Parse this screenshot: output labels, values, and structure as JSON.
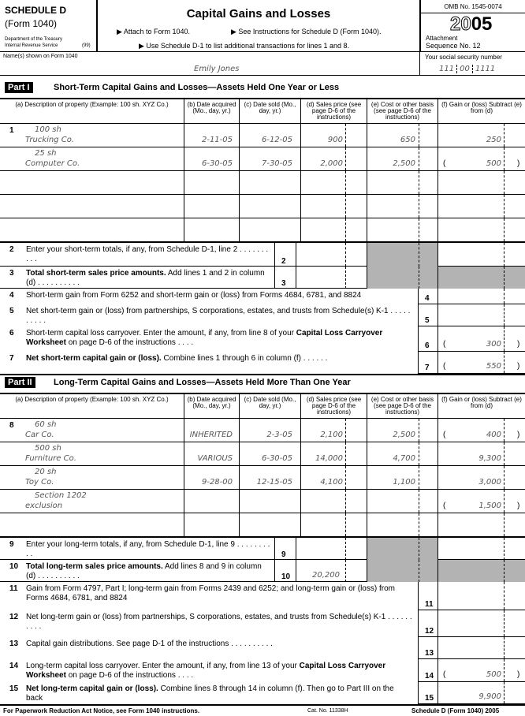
{
  "header": {
    "schedule": "SCHEDULE D",
    "form": "(Form 1040)",
    "dept1": "Department of the Treasury",
    "dept2": "Internal Revenue Service",
    "code": "(99)",
    "title": "Capital Gains and Losses",
    "attach": "▶ Attach to Form 1040.",
    "see": "▶ See Instructions for Schedule D (Form 1040).",
    "use": "▶ Use Schedule D-1 to list additional transactions for lines 1 and 8.",
    "omb": "OMB No. 1545-0074",
    "year_a": "20",
    "year_b": "05",
    "attach_label": "Attachment",
    "seq": "Sequence No. 12"
  },
  "name_label": "Name(s) shown on Form 1040",
  "name": "Emily Jones",
  "ssn_label": "Your social security number",
  "ssn": [
    "111",
    "00",
    "1111"
  ],
  "columns": [
    "(a) Description of property (Example: 100 sh. XYZ Co.)",
    "(b) Date acquired (Mo., day, yr.)",
    "(c) Date sold (Mo., day, yr.)",
    "(d) Sales price (see page D-6 of the instructions)",
    "(e) Cost or other basis (see page D-6 of the instructions)",
    "(f) Gain or (loss) Subtract (e) from (d)"
  ],
  "part1": {
    "tag": "Part I",
    "title": "Short-Term Capital Gains and Losses—Assets Held One Year or Less",
    "rows": [
      {
        "num": "1",
        "d1": "100 sh",
        "d2": "Trucking Co.",
        "b": "2-11-05",
        "c": "6-12-05",
        "d": "900",
        "e": "650",
        "f": "250"
      },
      {
        "num": "",
        "d1": "25 sh",
        "d2": "Computer Co.",
        "b": "6-30-05",
        "c": "7-30-05",
        "d": "2,000",
        "e": "2,500",
        "f": "500",
        "neg": true
      },
      {},
      {},
      {}
    ],
    "l2": "Enter your short-term totals, if any, from Schedule D-1, line 2",
    "l3a": "Total short-term sales price amounts.",
    "l3b": " Add lines 1 and 2 in column (d)",
    "l4": "Short-term gain from Form 6252 and short-term gain or (loss) from Forms 4684, 6781, and 8824",
    "l5": "Net short-term gain or (loss) from partnerships, S corporations, estates, and trusts from Schedule(s) K-1",
    "l6a": "Short-term capital loss carryover. Enter the amount, if any, from line 8 of your ",
    "l6b": "Capital Loss Carryover Worksheet",
    "l6c": " on page D-6 of the instructions",
    "l6v": "300",
    "l7a": "Net short-term capital gain or (loss).",
    "l7b": " Combine lines 1 through 6 in column (f)",
    "l7v": "550"
  },
  "part2": {
    "tag": "Part II",
    "title": "Long-Term Capital Gains and Losses—Assets Held More Than One Year",
    "rows": [
      {
        "num": "8",
        "d1": "60 sh",
        "d2": "Car Co.",
        "b": "INHERITED",
        "c": "2-3-05",
        "d": "2,100",
        "e": "2,500",
        "f": "400",
        "neg": true
      },
      {
        "num": "",
        "d1": "500 sh",
        "d2": "Furniture Co.",
        "b": "VARIOUS",
        "c": "6-30-05",
        "d": "14,000",
        "e": "4,700",
        "f": "9,300"
      },
      {
        "num": "",
        "d1": "20 sh",
        "d2": "Toy Co.",
        "b": "9-28-00",
        "c": "12-15-05",
        "d": "4,100",
        "e": "1,100",
        "f": "3,000"
      },
      {
        "num": "",
        "d1": "Section 1202",
        "d2": "exclusion",
        "f": "1,500",
        "neg": true
      },
      {}
    ],
    "l9": "Enter your long-term totals, if any, from Schedule D-1, line 9",
    "l10a": "Total long-term sales price amounts.",
    "l10b": " Add lines 8 and 9 in column (d)",
    "l10v": "20,200",
    "l11": "Gain from Form 4797, Part I; long-term gain from Forms 2439 and 6252; and long-term gain or (loss) from Forms 4684, 6781, and 8824",
    "l12": "Net long-term gain or (loss) from partnerships, S corporations, estates, and trusts from Schedule(s) K-1",
    "l13": "Capital gain distributions. See page D-1 of the instructions",
    "l14a": "Long-term capital loss carryover. Enter the amount, if any, from line 13 of your ",
    "l14b": "Capital Loss Carryover Worksheet",
    "l14c": " on page D-6 of the instructions",
    "l14v": "500",
    "l15a": "Net long-term capital gain or (loss).",
    "l15b": " Combine lines 8 through 14 in column (f). Then go to Part III on the back",
    "l15v": "9,900"
  },
  "footer": {
    "left": "For Paperwork Reduction Act Notice, see Form 1040 instructions.",
    "cat": "Cat. No. 11338H",
    "right": "Schedule D (Form 1040) 2005"
  }
}
